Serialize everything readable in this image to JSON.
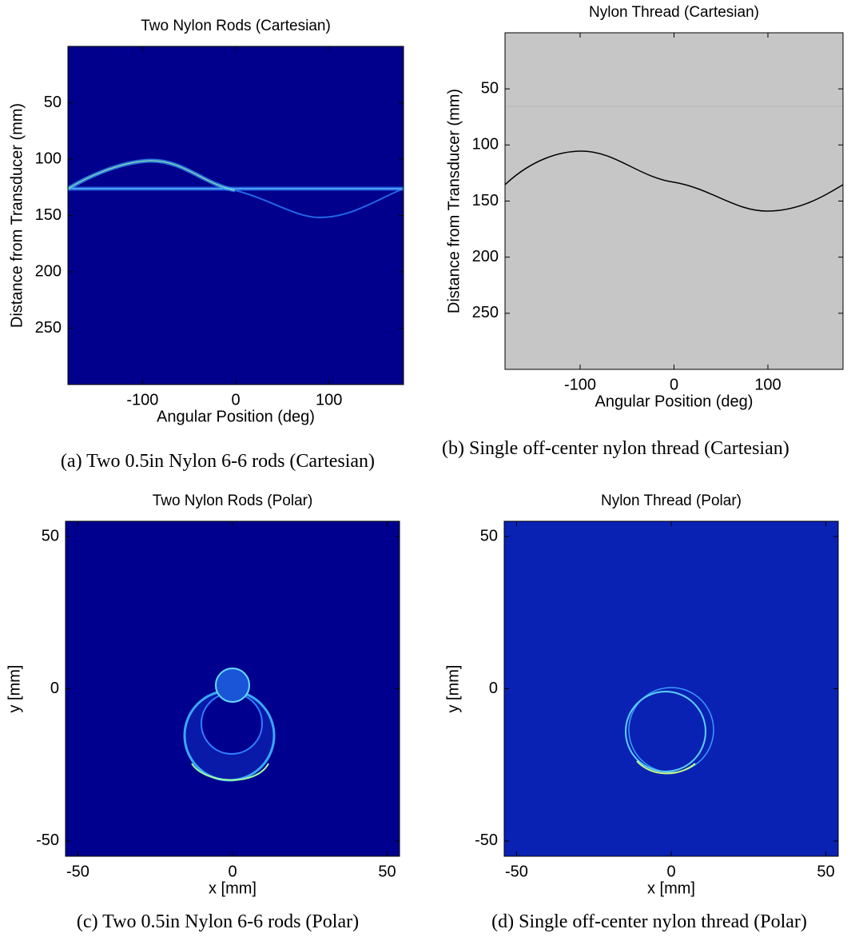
{
  "chart_data": [
    {
      "type": "heatmap",
      "title": "Two Nylon Rods (Cartesian)",
      "x_label": "Angular Position (deg)",
      "y_label": "Distance from Transducer (mm)",
      "xlim": [
        -180,
        180
      ],
      "ylim": [
        300,
        0
      ],
      "xticks": [
        -100,
        0,
        100
      ],
      "yticks": [
        50,
        100,
        150,
        200,
        250
      ],
      "caption": "(a) Two 0.5in Nylon 6-6 rods (Cartesian)"
    },
    {
      "type": "heatmap",
      "title": "Nylon Thread (Cartesian)",
      "x_label": "Angular Position (deg)",
      "y_label": "Distance from Transducer (mm)",
      "xlim": [
        -180,
        180
      ],
      "ylim": [
        300,
        0
      ],
      "xticks": [
        -100,
        0,
        100
      ],
      "yticks": [
        50,
        100,
        150,
        200,
        250
      ],
      "caption": "(b) Single off-center nylon thread (Cartesian)"
    },
    {
      "type": "heatmap",
      "title": "Two Nylon Rods (Polar)",
      "x_label": "x [mm]",
      "y_label": "y [mm]",
      "xlim": [
        -54,
        54
      ],
      "ylim": [
        -55,
        55
      ],
      "xticks": [
        -50,
        0,
        50
      ],
      "yticks": [
        -50,
        0,
        50
      ],
      "caption": "(c) Two 0.5in Nylon 6-6 rods (Polar)"
    },
    {
      "type": "heatmap",
      "title": "Nylon Thread (Polar)",
      "x_label": "x [mm]",
      "y_label": "y [mm]",
      "xlim": [
        -54,
        54
      ],
      "ylim": [
        -55,
        55
      ],
      "xticks": [
        -50,
        0,
        50
      ],
      "yticks": [
        -50,
        0,
        50
      ],
      "caption": "(d) Single off-center nylon thread (Polar)"
    }
  ]
}
